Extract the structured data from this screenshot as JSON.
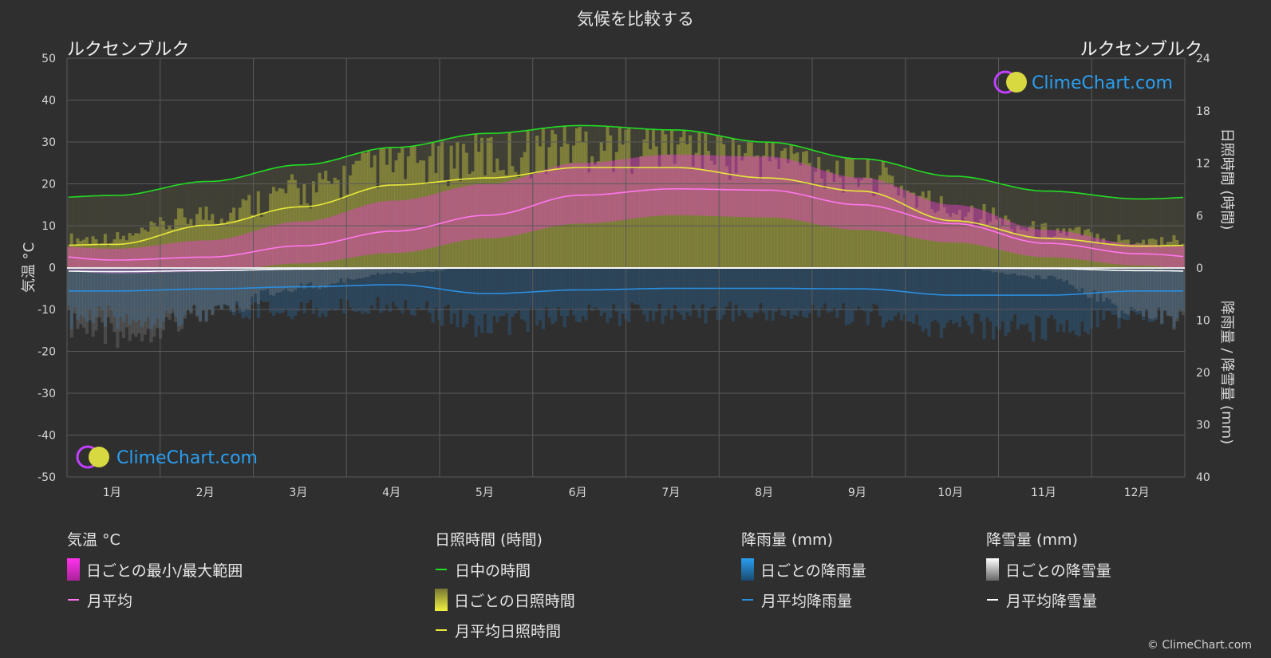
{
  "title": "気候を比較する",
  "location_left": "ルクセンブルク",
  "location_right": "ルクセンブルク",
  "watermark": "ClimeChart.com",
  "copyright": "© ClimeChart.com",
  "legend": {
    "temperature": {
      "header": "気温 °C",
      "daily_range": "日ごとの最小/最大範囲",
      "monthly_avg": "月平均"
    },
    "sunshine": {
      "header": "日照時間 (時間)",
      "daylight": "日中の時間",
      "daily_sunshine": "日ごとの日照時間",
      "monthly_avg_sunshine": "月平均日照時間"
    },
    "rain": {
      "header": "降雨量 (mm)",
      "daily_rain": "日ごとの降雨量",
      "monthly_avg_rain": "月平均降雨量"
    },
    "snow": {
      "header": "降雪量 (mm)",
      "daily_snow": "日ごとの降雪量",
      "monthly_avg_snow": "月平均降雪量"
    }
  },
  "colors": {
    "background": "#2f2f2f",
    "daylight": "#22dd22",
    "sunshine_line": "#e8e83a",
    "sunshine_fill": "#c8c840",
    "temp_line": "#ff77ee",
    "temp_range": "#dd44bb",
    "rain_line": "#2a8fe0",
    "rain_bar": "#2a6aa0",
    "snow_line": "#ffffff",
    "snow_bar": "#9a9a9a",
    "grid": "#5a5a5a"
  },
  "chart_data": {
    "type": "line",
    "categories": [
      "1月",
      "2月",
      "3月",
      "4月",
      "5月",
      "6月",
      "7月",
      "8月",
      "9月",
      "10月",
      "11月",
      "12月"
    ],
    "y_left": {
      "label": "気温 °C",
      "range": [
        -50,
        50
      ],
      "ticks": [
        50,
        40,
        30,
        20,
        10,
        0,
        -10,
        -20,
        -30,
        -40,
        -50
      ]
    },
    "y_right_top": {
      "label": "日照時間 (時間)",
      "range": [
        0,
        24
      ],
      "ticks": [
        24,
        18,
        12,
        6,
        0
      ]
    },
    "y_right_bottom": {
      "label": "降雨量 / 降雪量 (mm)",
      "range": [
        0,
        40
      ],
      "ticks": [
        10,
        20,
        30,
        40
      ]
    },
    "grid": true,
    "series": [
      {
        "name": "日中の時間",
        "axis": "sunshine_hours",
        "values": [
          8.3,
          9.9,
          11.8,
          13.8,
          15.4,
          16.3,
          15.8,
          14.4,
          12.5,
          10.5,
          8.8,
          7.9
        ]
      },
      {
        "name": "月平均日照時間",
        "axis": "sunshine_hours",
        "values": [
          2.7,
          4.9,
          7.0,
          9.5,
          10.3,
          11.5,
          11.5,
          10.3,
          8.8,
          5.4,
          3.4,
          2.5
        ]
      },
      {
        "name": "月平均",
        "axis": "temperature_c",
        "values": [
          1.8,
          2.5,
          5.2,
          8.7,
          12.5,
          17.3,
          18.8,
          18.5,
          15.0,
          10.5,
          5.8,
          3.3
        ]
      },
      {
        "name": "日ごとの最小/最大範囲 (最大)",
        "axis": "temperature_c",
        "values": [
          4.5,
          6.5,
          11.0,
          16.0,
          20.0,
          25.0,
          27.0,
          26.5,
          21.5,
          15.0,
          9.0,
          5.5
        ]
      },
      {
        "name": "日ごとの最小/最大範囲 (最小)",
        "axis": "temperature_c",
        "values": [
          -1.5,
          -1.0,
          1.0,
          3.5,
          7.0,
          10.5,
          12.5,
          12.0,
          9.0,
          6.0,
          2.5,
          0.5
        ]
      },
      {
        "name": "月平均降雨量",
        "axis": "precip_mm",
        "values": [
          4.4,
          4.0,
          3.6,
          3.2,
          4.9,
          4.2,
          3.9,
          3.9,
          4.0,
          5.2,
          5.2,
          4.4
        ]
      },
      {
        "name": "月平均降雪量",
        "axis": "precip_mm",
        "values": [
          0.7,
          0.5,
          0.2,
          0.05,
          0,
          0,
          0,
          0,
          0,
          0,
          0.1,
          0.5
        ]
      }
    ]
  }
}
